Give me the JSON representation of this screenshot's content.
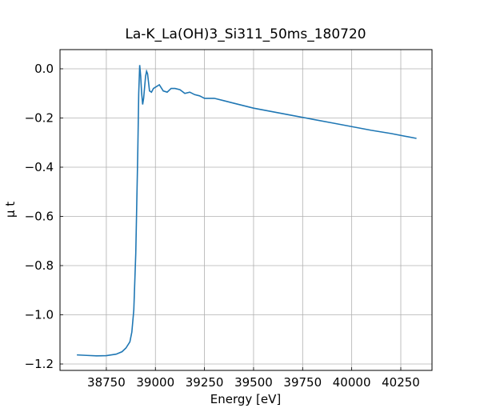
{
  "chart_data": {
    "type": "line",
    "title": "La-K_La(OH)3_Si311_50ms_180720",
    "xlabel": "Energy [eV]",
    "ylabel": "μ t",
    "color": "#1f77b4",
    "grid": true,
    "x": [
      38600,
      38650,
      38700,
      38750,
      38800,
      38830,
      38850,
      38870,
      38880,
      38890,
      38900,
      38910,
      38915,
      38920,
      38925,
      38930,
      38935,
      38940,
      38950,
      38955,
      38960,
      38970,
      38980,
      38990,
      39000,
      39020,
      39040,
      39060,
      39080,
      39100,
      39125,
      39150,
      39175,
      39200,
      39225,
      39250,
      39300,
      39350,
      39400,
      39500,
      39600,
      39700,
      39800,
      39900,
      40000,
      40100,
      40200,
      40330
    ],
    "values": [
      -1.163,
      -1.165,
      -1.167,
      -1.166,
      -1.16,
      -1.15,
      -1.135,
      -1.11,
      -1.07,
      -0.98,
      -0.75,
      -0.35,
      -0.1,
      0.015,
      -0.03,
      -0.1,
      -0.145,
      -0.12,
      -0.03,
      -0.01,
      -0.02,
      -0.09,
      -0.095,
      -0.08,
      -0.075,
      -0.065,
      -0.09,
      -0.095,
      -0.08,
      -0.08,
      -0.085,
      -0.1,
      -0.095,
      -0.105,
      -0.11,
      -0.12,
      -0.12,
      -0.13,
      -0.14,
      -0.16,
      -0.175,
      -0.19,
      -0.205,
      -0.22,
      -0.235,
      -0.25,
      -0.263,
      -0.283
    ],
    "xlim": [
      38514,
      40409
    ],
    "ylim": [
      -1.226,
      0.078
    ],
    "xticks": [
      38750,
      39000,
      39250,
      39500,
      39750,
      40000,
      40250
    ],
    "yticks": [
      {
        "value": 0,
        "label": "0.0"
      },
      {
        "value": -0.2,
        "label": "−0.2"
      },
      {
        "value": -0.4,
        "label": "−0.4"
      },
      {
        "value": -0.6,
        "label": "−0.6"
      },
      {
        "value": -0.8,
        "label": "−0.8"
      },
      {
        "value": -1.0,
        "label": "−1.0"
      },
      {
        "value": -1.2,
        "label": "−1.2"
      }
    ]
  }
}
